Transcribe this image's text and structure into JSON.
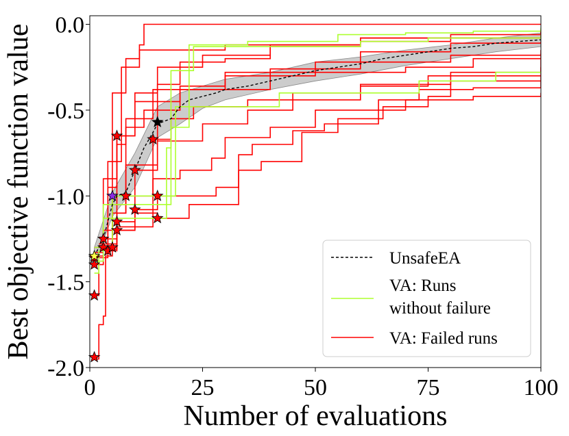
{
  "chart_data": {
    "type": "line",
    "xlabel": "Number of evaluations",
    "ylabel": "Best objective function value",
    "xlim": [
      0,
      100
    ],
    "ylim": [
      -2.0,
      0.05
    ],
    "x_ticks": [
      0,
      25,
      50,
      75,
      100
    ],
    "x_tick_labels": [
      "0",
      "25",
      "50",
      "75",
      "100"
    ],
    "y_ticks": [
      0.0,
      -0.5,
      -1.0,
      -1.5,
      -2.0
    ],
    "y_tick_labels": [
      "0.0",
      "-0.5",
      "-1.0",
      "-1.5",
      "-2.0"
    ],
    "grid": false,
    "legend_position": "lower-right",
    "legend": [
      {
        "label_lines": [
          "UnsafeEA"
        ],
        "color": "#000000",
        "style": "dashed"
      },
      {
        "label_lines": [
          "VA: Runs",
          "without failure"
        ],
        "color": "#adff2f",
        "style": "solid"
      },
      {
        "label_lines": [
          "VA: Failed runs"
        ],
        "color": "#ff0000",
        "style": "solid"
      }
    ],
    "colors": {
      "unsafe": "#000000",
      "band": "#bbbbbb",
      "ok": "#adff2f",
      "failed": "#ff0000"
    },
    "unsafe_ea": {
      "points": [
        [
          1,
          -1.35
        ],
        [
          2,
          -1.3
        ],
        [
          3,
          -1.25
        ],
        [
          4,
          -1.15
        ],
        [
          5,
          -1.05
        ],
        [
          6,
          -1.0
        ],
        [
          8,
          -0.98
        ],
        [
          10,
          -0.85
        ],
        [
          12,
          -0.72
        ],
        [
          14,
          -0.63
        ],
        [
          15,
          -0.58
        ],
        [
          18,
          -0.55
        ],
        [
          20,
          -0.48
        ],
        [
          22,
          -0.44
        ],
        [
          25,
          -0.42
        ],
        [
          28,
          -0.4
        ],
        [
          30,
          -0.38
        ],
        [
          35,
          -0.36
        ],
        [
          40,
          -0.33
        ],
        [
          45,
          -0.3
        ],
        [
          50,
          -0.27
        ],
        [
          55,
          -0.25
        ],
        [
          60,
          -0.23
        ],
        [
          65,
          -0.2
        ],
        [
          70,
          -0.18
        ],
        [
          75,
          -0.16
        ],
        [
          80,
          -0.14
        ],
        [
          85,
          -0.13
        ],
        [
          90,
          -0.11
        ],
        [
          95,
          -0.1
        ],
        [
          100,
          -0.09
        ]
      ],
      "band_upper": [
        [
          1,
          -1.3
        ],
        [
          5,
          -0.98
        ],
        [
          10,
          -0.75
        ],
        [
          15,
          -0.48
        ],
        [
          20,
          -0.4
        ],
        [
          25,
          -0.36
        ],
        [
          30,
          -0.32
        ],
        [
          40,
          -0.28
        ],
        [
          50,
          -0.22
        ],
        [
          60,
          -0.19
        ],
        [
          70,
          -0.15
        ],
        [
          80,
          -0.12
        ],
        [
          90,
          -0.08
        ],
        [
          100,
          -0.05
        ]
      ],
      "band_lower": [
        [
          1,
          -1.4
        ],
        [
          5,
          -1.12
        ],
        [
          10,
          -0.95
        ],
        [
          15,
          -0.66
        ],
        [
          20,
          -0.58
        ],
        [
          25,
          -0.49
        ],
        [
          30,
          -0.44
        ],
        [
          40,
          -0.38
        ],
        [
          50,
          -0.33
        ],
        [
          60,
          -0.29
        ],
        [
          70,
          -0.24
        ],
        [
          80,
          -0.2
        ],
        [
          90,
          -0.16
        ],
        [
          100,
          -0.13
        ]
      ],
      "end_marker": {
        "x": 15,
        "y": -0.57
      }
    },
    "runs_without_failure": [
      [
        [
          1,
          -1.45
        ],
        [
          2,
          -1.32
        ],
        [
          3,
          -1.13
        ],
        [
          15,
          -1.13
        ],
        [
          17,
          -0.72
        ],
        [
          18,
          -0.27
        ],
        [
          21,
          -0.27
        ],
        [
          23,
          -0.13
        ],
        [
          40,
          -0.13
        ],
        [
          60,
          -0.1
        ],
        [
          75,
          -0.08
        ],
        [
          100,
          -0.06
        ]
      ],
      [
        [
          1,
          -1.38
        ],
        [
          3,
          -1.05
        ],
        [
          10,
          -1.05
        ],
        [
          18,
          -0.6
        ],
        [
          22,
          -0.12
        ],
        [
          35,
          -0.1
        ],
        [
          55,
          -0.06
        ],
        [
          70,
          -0.05
        ],
        [
          85,
          -0.04
        ],
        [
          100,
          -0.02
        ]
      ],
      [
        [
          1,
          -1.3
        ],
        [
          5,
          -1.0
        ],
        [
          18,
          -1.0
        ],
        [
          19,
          -0.48
        ],
        [
          40,
          -0.48
        ],
        [
          42,
          -0.4
        ],
        [
          71,
          -0.4
        ],
        [
          73,
          -0.33
        ],
        [
          88,
          -0.33
        ],
        [
          90,
          -0.28
        ],
        [
          100,
          -0.28
        ]
      ]
    ],
    "failed_runs": [
      [
        [
          1,
          -1.95
        ],
        [
          2,
          -1.75
        ],
        [
          3,
          -1.7
        ],
        [
          3.5,
          -1.35
        ],
        [
          5,
          -0.9
        ],
        [
          6,
          -0.7
        ],
        [
          8,
          -0.6
        ],
        [
          12,
          -0.5
        ],
        [
          15,
          -0.35
        ],
        [
          20,
          -0.22
        ],
        [
          30,
          -0.2
        ],
        [
          40,
          -0.13
        ],
        [
          60,
          -0.1
        ],
        [
          80,
          -0.06
        ],
        [
          100,
          -0.04
        ]
      ],
      [
        [
          1,
          -1.58
        ],
        [
          2,
          -1.35
        ],
        [
          3,
          -1.2
        ],
        [
          4,
          -0.95
        ],
        [
          6,
          -0.65
        ],
        [
          10,
          -0.4
        ],
        [
          15,
          -0.25
        ],
        [
          25,
          -0.18
        ],
        [
          40,
          -0.12
        ],
        [
          60,
          -0.08
        ],
        [
          100,
          -0.04
        ]
      ],
      [
        [
          1,
          -1.4
        ],
        [
          3,
          -0.9
        ],
        [
          5,
          -0.4
        ],
        [
          8,
          -0.2
        ],
        [
          11,
          -0.12
        ],
        [
          12,
          0.0
        ],
        [
          100,
          0.0
        ]
      ],
      [
        [
          1,
          -1.36
        ],
        [
          4,
          -0.8
        ],
        [
          7,
          -0.25
        ],
        [
          11,
          -0.15
        ],
        [
          30,
          -0.12
        ],
        [
          60,
          -0.08
        ],
        [
          100,
          -0.03
        ]
      ],
      [
        [
          1,
          -1.3
        ],
        [
          4,
          -1.2
        ],
        [
          5,
          -1.05
        ],
        [
          8,
          -0.55
        ],
        [
          14,
          -0.45
        ],
        [
          20,
          -0.38
        ],
        [
          40,
          -0.26
        ],
        [
          60,
          -0.16
        ],
        [
          80,
          -0.11
        ],
        [
          100,
          -0.1
        ]
      ],
      [
        [
          2,
          -1.3
        ],
        [
          5,
          -1.1
        ],
        [
          8,
          -0.82
        ],
        [
          15,
          -0.5
        ],
        [
          20,
          -0.38
        ],
        [
          30,
          -0.28
        ],
        [
          50,
          -0.22
        ],
        [
          80,
          -0.18
        ],
        [
          100,
          -0.15
        ]
      ],
      [
        [
          3,
          -1.28
        ],
        [
          6,
          -1.15
        ],
        [
          10,
          -0.85
        ],
        [
          15,
          -0.68
        ],
        [
          25,
          -0.58
        ],
        [
          35,
          -0.5
        ],
        [
          45,
          -0.4
        ],
        [
          60,
          -0.36
        ],
        [
          75,
          -0.3
        ],
        [
          100,
          -0.25
        ]
      ],
      [
        [
          3,
          -1.31
        ],
        [
          6,
          -1.2
        ],
        [
          10,
          -1.08
        ],
        [
          15,
          -1.0
        ],
        [
          28,
          -0.95
        ],
        [
          33,
          -0.76
        ],
        [
          36,
          -0.7
        ],
        [
          45,
          -0.62
        ],
        [
          52,
          -0.58
        ],
        [
          64,
          -0.44
        ],
        [
          73,
          -0.38
        ],
        [
          85,
          -0.37
        ],
        [
          100,
          -0.33
        ]
      ],
      [
        [
          4,
          -1.32
        ],
        [
          6,
          -1.2
        ],
        [
          10,
          -1.1
        ],
        [
          15,
          -1.13
        ],
        [
          22,
          -1.05
        ],
        [
          33,
          -0.85
        ],
        [
          38,
          -0.8
        ],
        [
          47,
          -0.63
        ],
        [
          55,
          -0.55
        ],
        [
          65,
          -0.48
        ],
        [
          75,
          -0.42
        ],
        [
          80,
          -0.33
        ],
        [
          100,
          -0.3
        ]
      ],
      [
        [
          5,
          -1.3
        ],
        [
          6,
          -1.18
        ],
        [
          14,
          -0.67
        ],
        [
          18,
          -0.55
        ],
        [
          23,
          -0.48
        ],
        [
          35,
          -0.44
        ],
        [
          60,
          -0.35
        ],
        [
          80,
          -0.28
        ],
        [
          100,
          -0.2
        ]
      ],
      [
        [
          2,
          -1.28
        ],
        [
          6,
          -0.65
        ],
        [
          10,
          -0.45
        ],
        [
          14,
          -0.38
        ],
        [
          20,
          -0.36
        ],
        [
          30,
          -0.3
        ],
        [
          50,
          -0.28
        ],
        [
          70,
          -0.25
        ],
        [
          85,
          -0.2
        ],
        [
          100,
          -0.17
        ]
      ],
      [
        [
          1,
          -1.33
        ],
        [
          3,
          -1.25
        ],
        [
          6,
          -1.1
        ],
        [
          8,
          -1.0
        ],
        [
          14,
          -0.9
        ],
        [
          20,
          -0.85
        ],
        [
          27,
          -0.78
        ],
        [
          30,
          -0.66
        ],
        [
          40,
          -0.6
        ],
        [
          50,
          -0.5
        ],
        [
          70,
          -0.44
        ],
        [
          85,
          -0.42
        ],
        [
          100,
          -0.4
        ]
      ]
    ],
    "failure_markers": [
      {
        "x": 1,
        "y": -1.94
      },
      {
        "x": 1,
        "y": -1.58
      },
      {
        "x": 1,
        "y": -1.4
      },
      {
        "x": 1,
        "y": -1.36
      },
      {
        "x": 3,
        "y": -1.3
      },
      {
        "x": 3,
        "y": -1.25
      },
      {
        "x": 4,
        "y": -1.32
      },
      {
        "x": 5,
        "y": -1.3
      },
      {
        "x": 6,
        "y": -1.2
      },
      {
        "x": 6,
        "y": -1.15
      },
      {
        "x": 6,
        "y": -0.65
      },
      {
        "x": 10,
        "y": -1.08
      },
      {
        "x": 10,
        "y": -0.85
      },
      {
        "x": 14,
        "y": -0.67
      },
      {
        "x": 15,
        "y": -1.0
      },
      {
        "x": 15,
        "y": -1.13
      },
      {
        "x": 8,
        "y": -1.0
      }
    ],
    "special_markers": [
      {
        "x": 1,
        "y": -1.35,
        "color": "#ffff44"
      },
      {
        "x": 5,
        "y": -1.0,
        "color": "#8a2be2"
      }
    ]
  }
}
